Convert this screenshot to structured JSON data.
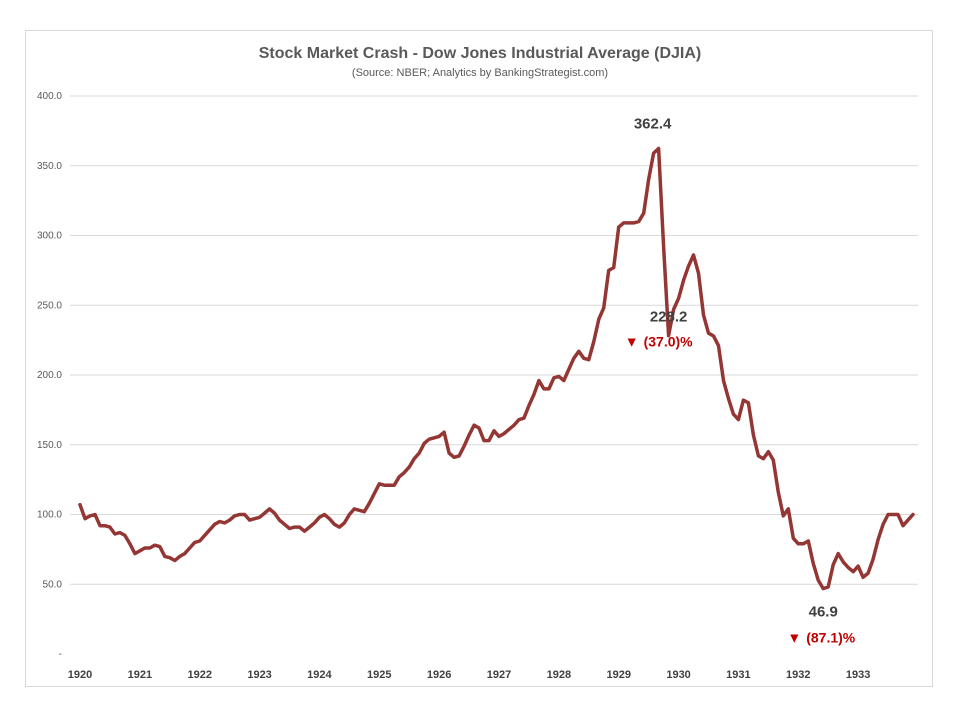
{
  "chart_data": {
    "type": "line",
    "title": "Stock Market Crash - Dow Jones Industrial Average (DJIA)",
    "subtitle": "(Source: NBER; Analytics by BankingStrategist.com)",
    "xlabel": "",
    "ylabel": "",
    "x_start": 1920,
    "x_step_years": 0.0833333,
    "ylim": [
      0,
      400
    ],
    "y_ticks": [
      {
        "value": 0,
        "label": "-"
      },
      {
        "value": 50,
        "label": "50.0"
      },
      {
        "value": 100,
        "label": "100.0"
      },
      {
        "value": 150,
        "label": "150.0"
      },
      {
        "value": 200,
        "label": "200.0"
      },
      {
        "value": 250,
        "label": "250.0"
      },
      {
        "value": 300,
        "label": "300.0"
      },
      {
        "value": 350,
        "label": "350.0"
      },
      {
        "value": 400,
        "label": "400.0"
      }
    ],
    "x_ticks": [
      {
        "value": 1920,
        "label": "1920"
      },
      {
        "value": 1921,
        "label": "1921"
      },
      {
        "value": 1922,
        "label": "1922"
      },
      {
        "value": 1923,
        "label": "1923"
      },
      {
        "value": 1924,
        "label": "1924"
      },
      {
        "value": 1925,
        "label": "1925"
      },
      {
        "value": 1926,
        "label": "1926"
      },
      {
        "value": 1927,
        "label": "1927"
      },
      {
        "value": 1928,
        "label": "1928"
      },
      {
        "value": 1929,
        "label": "1929"
      },
      {
        "value": 1930,
        "label": "1930"
      },
      {
        "value": 1931,
        "label": "1931"
      },
      {
        "value": 1932,
        "label": "1932"
      },
      {
        "value": 1933,
        "label": "1933"
      }
    ],
    "series": [
      {
        "name": "DJIA",
        "color": "#943634",
        "values": [
          107,
          97,
          99,
          100,
          92,
          92,
          91,
          86,
          87,
          85,
          79,
          72,
          74,
          76,
          76,
          78,
          77,
          70,
          69,
          67,
          70,
          72,
          76,
          80,
          81,
          85,
          89,
          93,
          95,
          94,
          96,
          99,
          100,
          100,
          96,
          97,
          98,
          101,
          104,
          101,
          96,
          93,
          90,
          91,
          91,
          88,
          91,
          94,
          98,
          100,
          97,
          93,
          91,
          94,
          100,
          104,
          103,
          102,
          108,
          115,
          122,
          121,
          121,
          121,
          127,
          130,
          134,
          140,
          144,
          151,
          154,
          155,
          156,
          159,
          144,
          141,
          142,
          149,
          157,
          164,
          162,
          153,
          153,
          160,
          156,
          158,
          161,
          164,
          168,
          169,
          178,
          186,
          196,
          190,
          190,
          198,
          199,
          196,
          204,
          212,
          217,
          212,
          211,
          224,
          240,
          248,
          275,
          277,
          306,
          309,
          309,
          309,
          310,
          316,
          340,
          359,
          362.4,
          292,
          228.2,
          247,
          255,
          268,
          278,
          286,
          273,
          243,
          230,
          228,
          221,
          196,
          183,
          172,
          168,
          182,
          180,
          157,
          142,
          140,
          145,
          139,
          116,
          99,
          104,
          83,
          79,
          79,
          81,
          65,
          53,
          46.9,
          48,
          64,
          72,
          66,
          62,
          59,
          63,
          55,
          58,
          68,
          82,
          93,
          100,
          100,
          100,
          92,
          96,
          100
        ]
      }
    ],
    "annotations": [
      {
        "label": "362.4",
        "x_index": 116,
        "value": 362.4
      },
      {
        "label": "228.2",
        "change": "(37.0)%",
        "x_index": 118,
        "value": 228.2
      },
      {
        "label": "46.9",
        "change": "(87.1)%",
        "x_index": 149,
        "value": 46.9
      }
    ],
    "down_marker_symbol": "▼",
    "colors": {
      "line": "#943634",
      "decline": "#c00000",
      "grid": "#d9d9d9",
      "text": "#404040"
    }
  }
}
